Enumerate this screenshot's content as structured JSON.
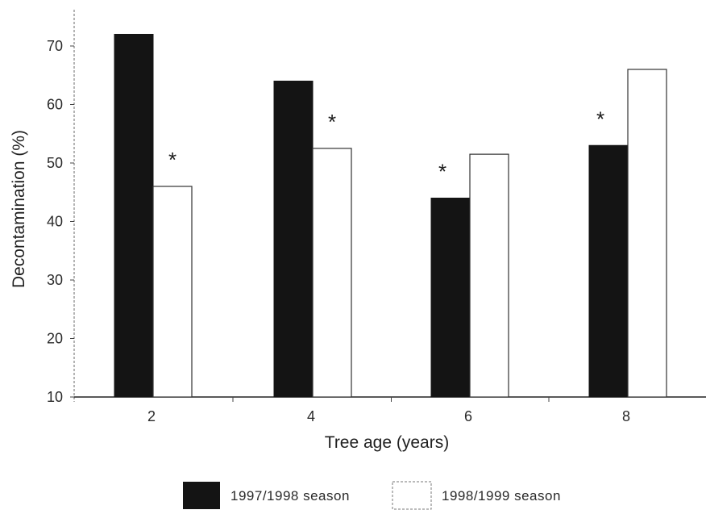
{
  "chart_data": {
    "type": "bar",
    "categories": [
      "2",
      "4",
      "6",
      "8"
    ],
    "series": [
      {
        "name": "1997/1998 season",
        "values": [
          72,
          64,
          44,
          53
        ],
        "color": "#141414",
        "fill_style": "solid"
      },
      {
        "name": "1998/1999 season",
        "values": [
          46,
          52.5,
          51.5,
          66
        ],
        "color": "#ffffff",
        "fill_style": "outline"
      }
    ],
    "annotations": [
      "*",
      "*",
      "*",
      "*"
    ],
    "xlabel": "Tree age (years)",
    "ylabel": "Decontamination (%)",
    "yticks": [
      "10",
      "20",
      "30",
      "40",
      "50",
      "60",
      "70"
    ],
    "ylim": [
      10,
      75
    ],
    "grid": false,
    "legend_position": "bottom-center"
  }
}
